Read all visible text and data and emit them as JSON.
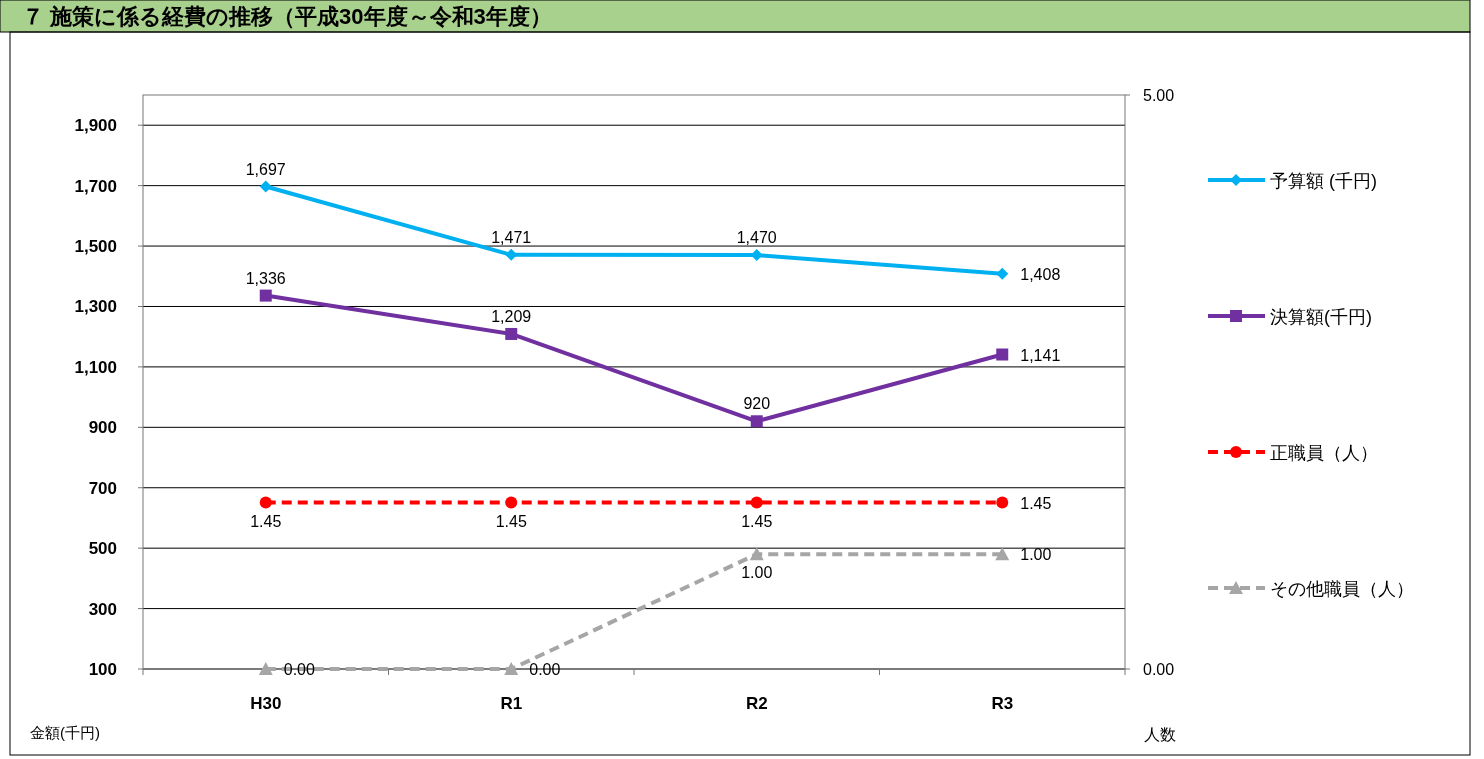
{
  "chart_data": {
    "type": "line",
    "title": "７ 施策に係る経費の推移（平成30年度～令和3年度）",
    "categories": [
      "H30",
      "R1",
      "R2",
      "R3"
    ],
    "ylabel": "金額(千円)",
    "y2label": "人数",
    "ylim": [
      100,
      2000
    ],
    "yticks": [
      100,
      300,
      500,
      700,
      900,
      {
        "value": 1100,
        "label": "1,100"
      },
      {
        "value": 1300,
        "label": "1,300"
      },
      {
        "value": 1500,
        "label": "1,500"
      },
      {
        "value": 1700,
        "label": "1,700"
      },
      {
        "value": 1900,
        "label": "1,900"
      }
    ],
    "y2lim": [
      0,
      5
    ],
    "y2ticks": [
      {
        "value": 0,
        "label": "0.00"
      },
      {
        "value": 5,
        "label": "5.00"
      }
    ],
    "grid": "y",
    "legend": "right",
    "series": [
      {
        "name": "予算額 (千円)",
        "color": "#00b0f0",
        "values": [
          1697,
          1471,
          1470,
          1408
        ],
        "marker": "diamond",
        "line_style": "solid",
        "value_labels": [
          "1,697",
          "1,471",
          "1,470",
          "1,408"
        ]
      },
      {
        "name": "決算額(千円)",
        "color": "#7030a0",
        "values": [
          1336,
          1209,
          920,
          1141
        ],
        "marker": "square",
        "line_style": "solid",
        "value_labels": [
          "1,336",
          "1,209",
          "920",
          "1,141"
        ]
      },
      {
        "name": "正職員（人）",
        "color": "#ff0000",
        "values": [
          1.45,
          1.45,
          1.45,
          1.45
        ],
        "axis": "y2",
        "marker": "circle",
        "line_style": "dashed",
        "value_labels": [
          "1.45",
          "1.45",
          "1.45",
          "1.45"
        ]
      },
      {
        "name": "その他職員（人）",
        "color": "#a6a6a6",
        "values": [
          0,
          0,
          1,
          1
        ],
        "axis": "y2",
        "marker": "triangle",
        "line_style": "dashed",
        "value_labels": [
          "0.00",
          "0.00",
          "1.00",
          "1.00"
        ]
      }
    ]
  }
}
